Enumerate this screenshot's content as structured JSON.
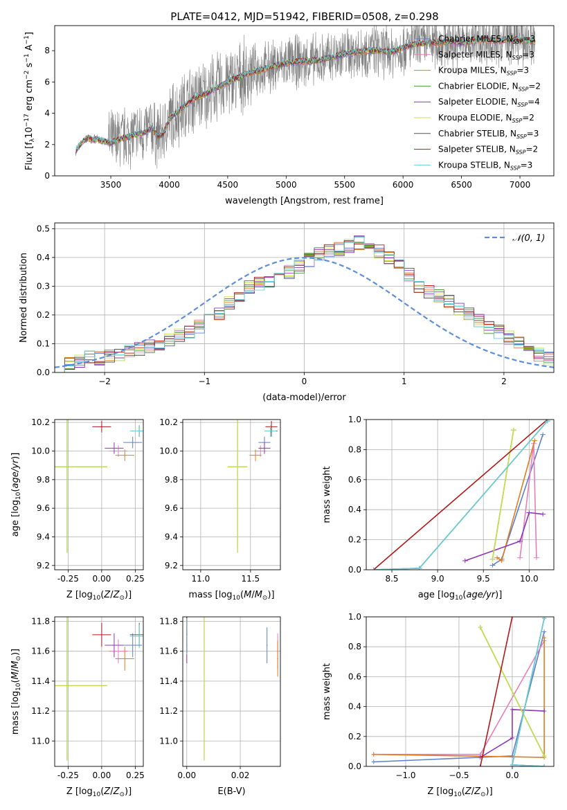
{
  "title": "PLATE=0412, MJD=51942, FIBERID=0508, z=0.298",
  "chart_data": [
    {
      "type": "line",
      "xlabel": "wavelength [Angstrom, rest frame]",
      "ylabel": "Flux [f_λ 10^-17 erg cm^-2 s^-1 A^-1]",
      "xlim": [
        3020,
        7290
      ],
      "ylim": [
        0,
        9.6
      ],
      "xticks": [
        3500,
        4000,
        4500,
        5000,
        5500,
        6000,
        6500,
        7000
      ],
      "yticks": [
        0,
        2,
        4,
        6,
        8
      ],
      "legend_position": "top-right",
      "series": [
        {
          "name": "Chabrier MILES, N_SSP=3",
          "color": "#5b7fce"
        },
        {
          "name": "Salpeter MILES, N_SSP=3",
          "color": "#e87dbd"
        },
        {
          "name": "Kroupa MILES, N_SSP=3",
          "color": "#e07b20"
        },
        {
          "name": "Chabrier ELODIE, N_SSP=2",
          "color": "#4a9a3c"
        },
        {
          "name": "Salpeter ELODIE, N_SSP=4",
          "color": "#8b35b5"
        },
        {
          "name": "Kroupa ELODIE, N_SSP=2",
          "color": "#c8e04a"
        },
        {
          "name": "Chabrier STELIB, N_SSP=3",
          "color": "#555555"
        },
        {
          "name": "Salpeter STELIB, N_SSP=2",
          "color": "#b01818"
        },
        {
          "name": "Kroupa STELIB, N_SSP=3",
          "color": "#66d0d8"
        }
      ],
      "model_curve": {
        "x": [
          3200,
          3250,
          3300,
          3400,
          3500,
          3600,
          3700,
          3800,
          3850,
          3900,
          3950,
          4000,
          4100,
          4200,
          4300,
          4400,
          4500,
          4600,
          4700,
          4800,
          4900,
          5000,
          5100,
          5200,
          5300,
          5400,
          5500,
          5600,
          5700,
          5800,
          5900,
          6000,
          6100,
          6200,
          6300,
          6400,
          6500,
          6600,
          6700,
          6800,
          6900,
          7000,
          7100
        ],
        "y": [
          1.6,
          2.1,
          2.4,
          2.3,
          2.1,
          2.4,
          2.6,
          2.8,
          3.1,
          2.5,
          2.7,
          3.6,
          4.3,
          4.9,
          5.2,
          5.6,
          6.0,
          6.3,
          6.6,
          6.8,
          7.0,
          7.2,
          7.3,
          7.3,
          7.4,
          7.6,
          7.8,
          7.9,
          8.0,
          8.0,
          7.9,
          8.2,
          8.4,
          8.5,
          8.5,
          8.6,
          8.5,
          8.6,
          8.7,
          8.6,
          8.7,
          8.7,
          8.6
        ]
      }
    },
    {
      "type": "line",
      "xlabel": "(data-model)/error",
      "ylabel": "Normed distribution",
      "xlim": [
        -2.5,
        2.5
      ],
      "ylim": [
        0,
        0.52
      ],
      "xticks": [
        -2,
        -1,
        0,
        1,
        2
      ],
      "yticks": [
        0.0,
        0.1,
        0.2,
        0.3,
        0.4,
        0.5
      ],
      "legend": "𝒩(0, 1)",
      "legend_position": "top-right",
      "gauss_color": "#5b8ed6",
      "bin_width": 0.1,
      "hist_mean": [
        0.02,
        0.03,
        0.04,
        0.05,
        0.05,
        0.06,
        0.06,
        0.07,
        0.08,
        0.09,
        0.1,
        0.11,
        0.13,
        0.14,
        0.16,
        0.18,
        0.2,
        0.24,
        0.27,
        0.3,
        0.31,
        0.32,
        0.33,
        0.35,
        0.37,
        0.39,
        0.41,
        0.42,
        0.43,
        0.44,
        0.45,
        0.44,
        0.42,
        0.4,
        0.37,
        0.34,
        0.3,
        0.28,
        0.27,
        0.25,
        0.22,
        0.2,
        0.18,
        0.16,
        0.14,
        0.12,
        0.1,
        0.08,
        0.06,
        0.05
      ]
    },
    {
      "type": "scatter",
      "xlabel": "Z [log10(Z/Z⊙)]",
      "ylabel": "age [log10(age/yr)]",
      "xlim": [
        -0.35,
        0.31
      ],
      "ylim": [
        9.17,
        10.22
      ],
      "xticks": [
        -0.25,
        0.0,
        0.25
      ],
      "yticks": [
        9.2,
        9.4,
        9.6,
        9.8,
        10.0,
        10.2
      ]
    },
    {
      "type": "scatter",
      "xlabel": "mass [log10(M/M⊙)]",
      "ylabel": "",
      "xlim": [
        10.82,
        11.8
      ],
      "ylim": [
        9.17,
        10.22
      ],
      "xticks": [
        11.0,
        11.5
      ],
      "yticks": [
        9.2,
        9.4,
        9.6,
        9.8,
        10.0,
        10.2
      ]
    },
    {
      "type": "line",
      "xlabel": "age [log10(age/yr)]",
      "ylabel": "mass weight",
      "xlim": [
        8.22,
        10.27
      ],
      "ylim": [
        0.0,
        1.0
      ],
      "xticks": [
        8.5,
        9.0,
        9.5,
        10.0
      ],
      "yticks": [
        0.0,
        0.2,
        0.4,
        0.6,
        0.8,
        1.0
      ]
    },
    {
      "type": "scatter",
      "xlabel": "Z [log10(Z/Z⊙)]",
      "ylabel": "mass [log10(M/M⊙)]",
      "xlim": [
        -0.35,
        0.31
      ],
      "ylim": [
        10.83,
        11.83
      ],
      "xticks": [
        -0.25,
        0.0,
        0.25
      ],
      "yticks": [
        11.0,
        11.2,
        11.4,
        11.6,
        11.8
      ]
    },
    {
      "type": "scatter",
      "xlabel": "E(B-V)",
      "ylabel": "",
      "xlim": [
        -0.0015,
        0.035
      ],
      "ylim": [
        10.83,
        11.83
      ],
      "xticks": [
        0.0,
        0.02
      ],
      "yticks": [
        11.0,
        11.2,
        11.4,
        11.6,
        11.8
      ]
    },
    {
      "type": "line",
      "xlabel": "Z [log10(Z/Z⊙)]",
      "ylabel": "mass weight",
      "xlim": [
        -1.37,
        0.39
      ],
      "ylim": [
        0.0,
        1.0
      ],
      "xticks": [
        -1.0,
        -0.5,
        0.0
      ],
      "yticks": [
        0.0,
        0.2,
        0.4,
        0.6,
        0.8,
        1.0
      ]
    }
  ],
  "sfh": [
    {
      "age": [
        9.6,
        9.7,
        10.15
      ],
      "Z": [
        -1.3,
        0.0,
        0.3
      ],
      "w": [
        0.03,
        0.07,
        0.9
      ],
      "color": "#5b7fce",
      "logM": 11.64,
      "ageMean": 10.06,
      "ebv": 0.03
    },
    {
      "age": [
        9.9,
        10.08,
        10.05
      ],
      "Z": [
        -1.3,
        -0.3,
        0.3
      ],
      "w": [
        0.08,
        0.08,
        0.84
      ],
      "color": "#e87dbd",
      "logM": 11.6,
      "ageMean": 10.0,
      "ebv": 0.034
    },
    {
      "age": [
        9.65,
        9.7,
        10.06
      ],
      "Z": [
        -1.3,
        0.3,
        0.3
      ],
      "w": [
        0.08,
        0.06,
        0.86
      ],
      "color": "#e07b20",
      "logM": 11.55,
      "ageMean": 9.97,
      "ebv": 0.034
    },
    {
      "age": [
        9.6,
        9.83
      ],
      "Z": [
        0.3,
        -0.3
      ],
      "w": [
        0.07,
        0.93
      ],
      "color": "#4a9a3c",
      "logM": 11.37,
      "ageMean": 9.89,
      "ebv": 0.0065
    },
    {
      "age": [
        9.3,
        9.9,
        10.0,
        10.15
      ],
      "Z": [
        -0.3,
        0.0,
        0.0,
        0.3
      ],
      "w": [
        0.06,
        0.19,
        0.38,
        0.37
      ],
      "color": "#8b35b5",
      "logM": 11.64,
      "ageMean": 10.02,
      "ebv": 0.0
    },
    {
      "age": [
        9.6,
        9.83
      ],
      "Z": [
        0.3,
        -0.3
      ],
      "w": [
        0.07,
        0.93
      ],
      "color": "#c8e04a",
      "logM": 11.37,
      "ageMean": 9.89,
      "ebv": 0.0065
    },
    {
      "age": [
        8.3,
        8.8,
        10.2
      ],
      "Z": [
        0.3,
        0.0,
        0.3
      ],
      "w": [
        0.0,
        0.01,
        0.99
      ],
      "color": "#555555",
      "logM": 11.71,
      "ageMean": 10.14,
      "ebv": 0.0
    },
    {
      "age": [
        8.3,
        10.2
      ],
      "Z": [
        -0.3,
        0.0
      ],
      "w": [
        0.0,
        1.0
      ],
      "color": "#b01818",
      "logM": 11.71,
      "ageMean": 10.17,
      "ebv": 0.0
    },
    {
      "age": [
        8.3,
        8.8,
        10.2
      ],
      "Z": [
        0.3,
        0.0,
        0.3
      ],
      "w": [
        0.0,
        0.01,
        0.99
      ],
      "color": "#66d0d8",
      "logM": 11.7,
      "ageMean": 10.14,
      "ebv": 0.0
    }
  ]
}
